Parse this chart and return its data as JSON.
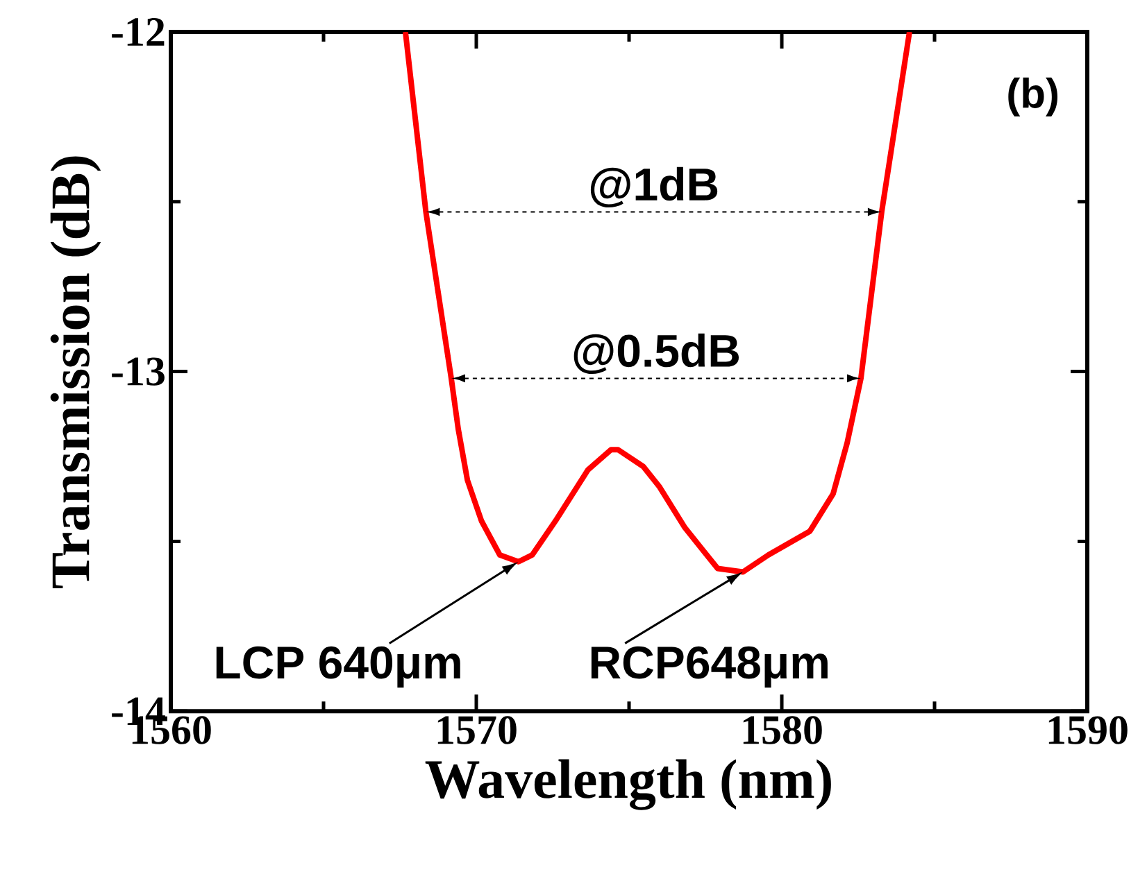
{
  "chart_data": {
    "type": "line",
    "xlabel": "Wavelength (nm)",
    "ylabel": "Transmission  (dB)",
    "x": [
      1567.68,
      1568.35,
      1569.18,
      1569.41,
      1569.71,
      1570.17,
      1570.77,
      1571.38,
      1571.83,
      1572.59,
      1573.65,
      1574.41,
      1574.64,
      1575.47,
      1576.0,
      1576.83,
      1577.9,
      1578.73,
      1579.56,
      1580.92,
      1581.68,
      1582.14,
      1582.59,
      1583.27,
      1584.18
    ],
    "series": [
      {
        "color": "#ff0000",
        "values": [
          -12.0,
          -12.53,
          -13.02,
          -13.17,
          -13.32,
          -13.44,
          -13.54,
          -13.56,
          -13.54,
          -13.44,
          -13.29,
          -13.23,
          -13.23,
          -13.28,
          -13.34,
          -13.46,
          -13.58,
          -13.59,
          -13.54,
          -13.47,
          -13.36,
          -13.21,
          -13.02,
          -12.53,
          -12.0
        ]
      }
    ],
    "xlim": [
      1560,
      1590
    ],
    "ylim": [
      -14,
      -12
    ],
    "xticks": [
      1560,
      1570,
      1580,
      1590
    ],
    "yticks": [
      -14,
      -13,
      -12
    ],
    "grid": false,
    "marker": "none",
    "line_style": "solid",
    "annotations": [
      "(b)",
      "@1dB",
      "@0.5dB",
      {
        "text": "LCP 640μm",
        "x": 1571.38,
        "y": -13.56
      },
      {
        "text": "RCP648μm",
        "x": 1578.73,
        "y": -13.59
      }
    ]
  }
}
